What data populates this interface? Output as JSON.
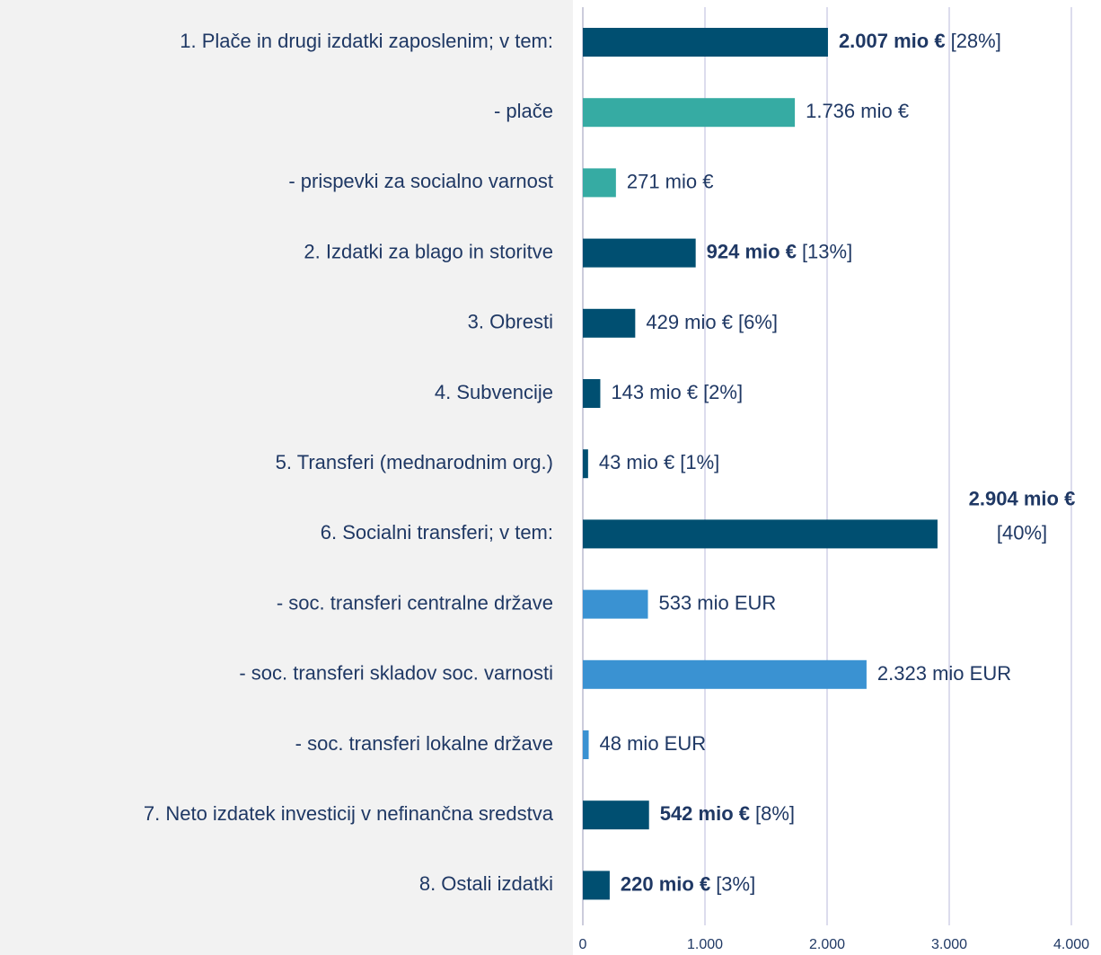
{
  "chart_data": {
    "type": "bar",
    "orientation": "horizontal",
    "categories": [
      "1. Plače in drugi izdatki zaposlenim; v tem:",
      "- plače",
      "- prispevki za socialno varnost",
      "2. Izdatki za blago in storitve",
      "3. Obresti",
      "4. Subvencije",
      "5. Transferi (mednarodnim org.)",
      "6. Socialni transferi; v tem:",
      "- soc. transferi centralne države",
      "- soc. transferi skladov soc. varnosti",
      "- soc. transferi lokalne države",
      "7. Neto izdatek investicij v nefinančna sredstva",
      "8. Ostali izdatki"
    ],
    "values": [
      2007,
      1736,
      271,
      924,
      429,
      143,
      43,
      2904,
      533,
      2323,
      48,
      542,
      220
    ],
    "value_labels": [
      "2.007 mio €",
      "1.736 mio €",
      "271 mio €",
      "924 mio €",
      "429 mio €",
      "143 mio €",
      "43 mio €",
      "2.904 mio €",
      "533 mio EUR",
      "2.323 mio EUR",
      "48 mio EUR",
      "542 mio €",
      "220 mio €"
    ],
    "share_labels": [
      "[28%]",
      null,
      null,
      "[13%]",
      "[6%]",
      "[2%]",
      "[1%]",
      "[40%]",
      null,
      null,
      null,
      "[8%]",
      "[3%]"
    ],
    "bold_labels": [
      true,
      false,
      false,
      true,
      false,
      false,
      false,
      true,
      false,
      false,
      false,
      true,
      true
    ],
    "colors": [
      "#004f71",
      "#36aba3",
      "#36aba3",
      "#004f71",
      "#004f71",
      "#004f71",
      "#004f71",
      "#004f71",
      "#3a92d2",
      "#3a92d2",
      "#3a92d2",
      "#004f71",
      "#004f71"
    ],
    "xlim": [
      0,
      4000
    ],
    "xticks": [
      0,
      {
        "value": 1000,
        "label": "1.000"
      },
      {
        "value": 2000,
        "label": "2.000"
      },
      {
        "value": 3000,
        "label": "3.000"
      },
      {
        "value": 4000,
        "label": "4.000"
      }
    ],
    "grid": true
  }
}
